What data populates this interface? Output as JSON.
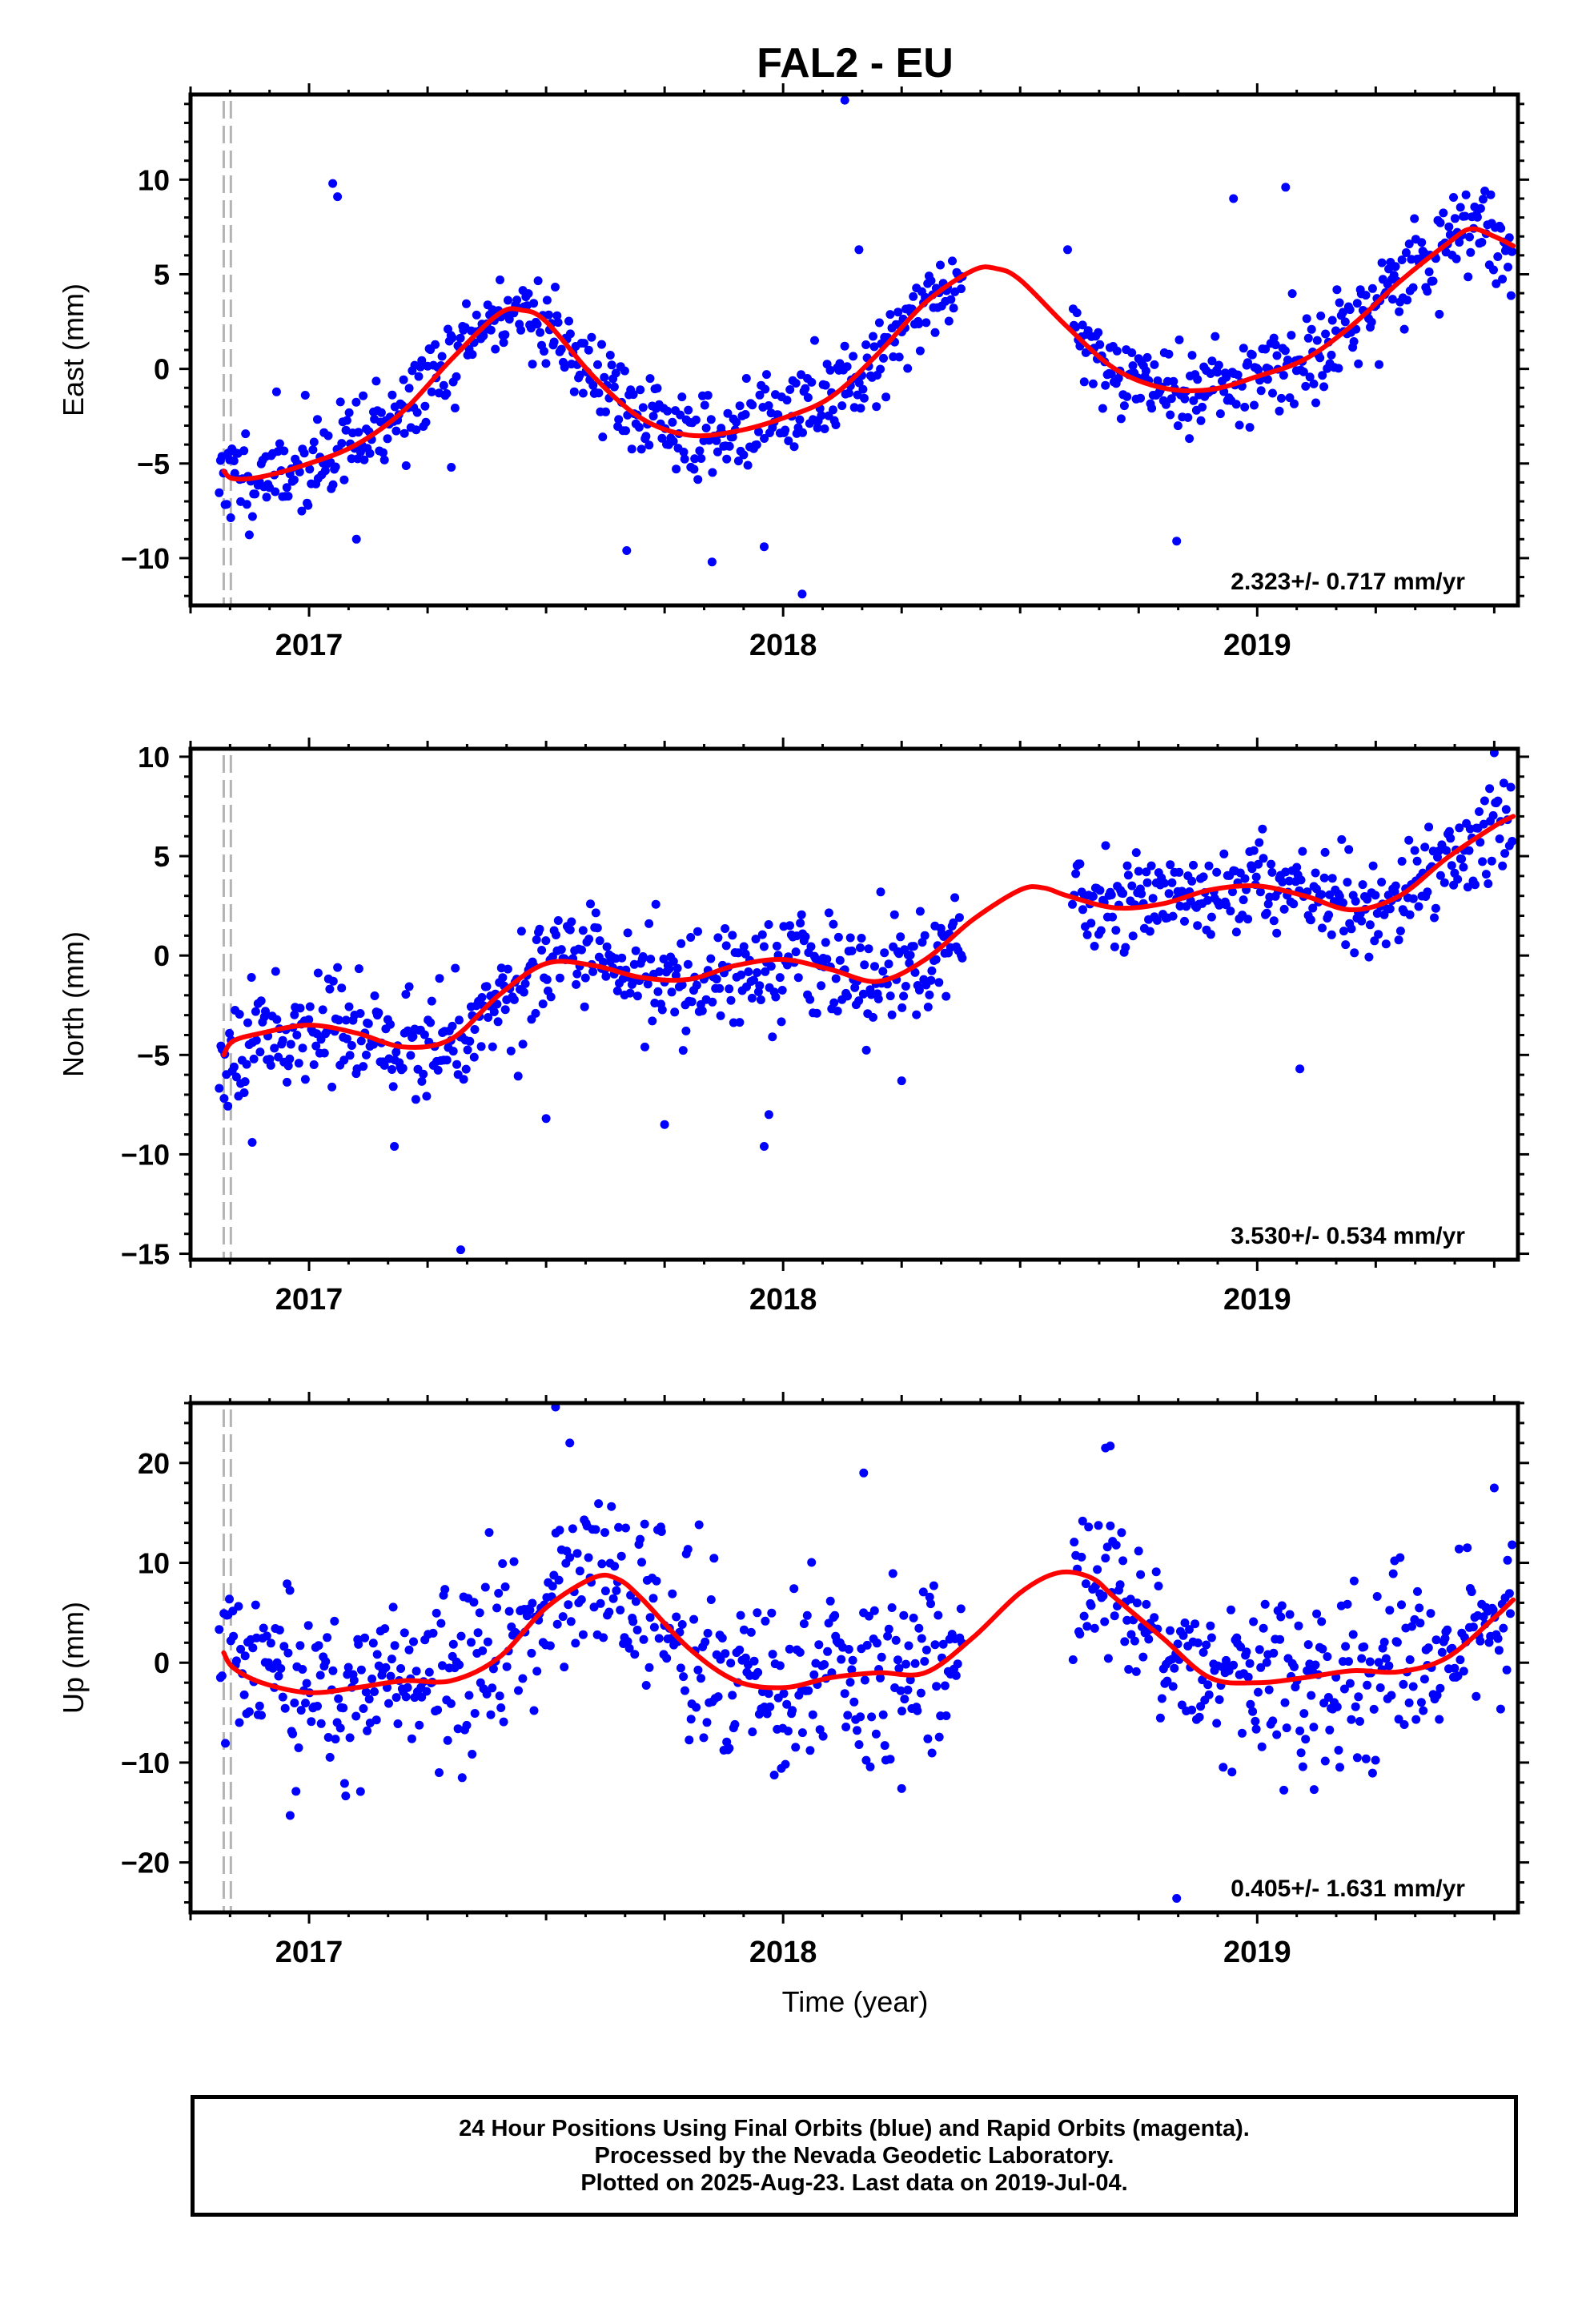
{
  "title": "FAL2 - EU",
  "xlabel": "Time (year)",
  "footer": {
    "lines": [
      "24 Hour Positions Using Final Orbits (blue) and Rapid Orbits (magenta).",
      "Processed by the Nevada Geodetic Laboratory.",
      "Plotted on 2025-Aug-23. Last data on 2019-Jul-04."
    ]
  },
  "colors": {
    "points": "#0000ff",
    "model": "#ff0000",
    "event_lines": "#b4b4b4",
    "frame": "#000000"
  },
  "chart_data": [
    {
      "type": "scatter",
      "id": "east",
      "ylabel": "East (mm)",
      "rate": "2.323+/- 0.717 mm/yr",
      "xlim": [
        2016.75,
        2019.55
      ],
      "ylim": [
        -12.5,
        14.5
      ],
      "yticks": [
        -10,
        -5,
        0,
        5,
        10
      ],
      "xticks": [
        2017,
        2018,
        2019
      ],
      "event_lines": [
        2016.82,
        2016.835
      ],
      "model": [
        [
          2016.82,
          -5.4
        ],
        [
          2016.84,
          -5.8
        ],
        [
          2016.9,
          -5.7
        ],
        [
          2017.0,
          -5.0
        ],
        [
          2017.1,
          -4.0
        ],
        [
          2017.2,
          -2.2
        ],
        [
          2017.3,
          0.5
        ],
        [
          2017.4,
          2.9
        ],
        [
          2017.45,
          3.1
        ],
        [
          2017.5,
          2.5
        ],
        [
          2017.6,
          -0.4
        ],
        [
          2017.7,
          -2.6
        ],
        [
          2017.8,
          -3.5
        ],
        [
          2017.9,
          -3.3
        ],
        [
          2018.0,
          -2.6
        ],
        [
          2018.1,
          -1.5
        ],
        [
          2018.2,
          0.8
        ],
        [
          2018.3,
          3.5
        ],
        [
          2018.4,
          5.2
        ],
        [
          2018.45,
          5.3
        ],
        [
          2018.5,
          4.7
        ],
        [
          2018.6,
          2.2
        ],
        [
          2018.7,
          0.0
        ],
        [
          2018.8,
          -1.0
        ],
        [
          2018.9,
          -1.1
        ],
        [
          2019.0,
          -0.4
        ],
        [
          2019.1,
          0.5
        ],
        [
          2019.2,
          2.3
        ],
        [
          2019.3,
          4.6
        ],
        [
          2019.4,
          6.6
        ],
        [
          2019.45,
          7.4
        ],
        [
          2019.5,
          7.0
        ],
        [
          2019.54,
          6.5
        ]
      ],
      "points": {
        "segments": [
          [
            2016.81,
            2018.38
          ],
          [
            2018.61,
            2019.54
          ]
        ],
        "n_per_year": 330,
        "noise_sd": 1.2,
        "seed": 11,
        "outliers": [
          [
            2017.05,
            9.8
          ],
          [
            2017.06,
            9.1
          ],
          [
            2017.67,
            -9.6
          ],
          [
            2017.85,
            -10.2
          ],
          [
            2017.96,
            -9.4
          ],
          [
            2018.04,
            -11.9
          ],
          [
            2018.13,
            14.2
          ],
          [
            2018.16,
            6.3
          ],
          [
            2018.83,
            -9.1
          ],
          [
            2018.95,
            9.0
          ],
          [
            2019.06,
            9.6
          ],
          [
            2017.3,
            -5.2
          ],
          [
            2017.1,
            -9.0
          ],
          [
            2018.6,
            6.3
          ]
        ]
      }
    },
    {
      "type": "scatter",
      "id": "north",
      "ylabel": "North (mm)",
      "rate": "3.530+/- 0.534 mm/yr",
      "xlim": [
        2016.75,
        2019.55
      ],
      "ylim": [
        -15.3,
        10.4
      ],
      "yticks": [
        -15,
        -10,
        -5,
        0,
        5,
        10
      ],
      "xticks": [
        2017,
        2018,
        2019
      ],
      "event_lines": [
        2016.82,
        2016.835
      ],
      "model": [
        [
          2016.82,
          -5.0
        ],
        [
          2016.84,
          -4.3
        ],
        [
          2016.9,
          -3.9
        ],
        [
          2017.0,
          -3.5
        ],
        [
          2017.1,
          -3.9
        ],
        [
          2017.2,
          -4.6
        ],
        [
          2017.3,
          -4.2
        ],
        [
          2017.4,
          -2.0
        ],
        [
          2017.5,
          -0.4
        ],
        [
          2017.6,
          -0.5
        ],
        [
          2017.7,
          -1.1
        ],
        [
          2017.8,
          -1.2
        ],
        [
          2017.9,
          -0.5
        ],
        [
          2018.0,
          -0.2
        ],
        [
          2018.1,
          -0.7
        ],
        [
          2018.2,
          -1.3
        ],
        [
          2018.3,
          -0.2
        ],
        [
          2018.4,
          1.8
        ],
        [
          2018.5,
          3.3
        ],
        [
          2018.55,
          3.4
        ],
        [
          2018.6,
          3.0
        ],
        [
          2018.7,
          2.4
        ],
        [
          2018.8,
          2.6
        ],
        [
          2018.9,
          3.3
        ],
        [
          2019.0,
          3.5
        ],
        [
          2019.1,
          3.0
        ],
        [
          2019.2,
          2.3
        ],
        [
          2019.3,
          3.0
        ],
        [
          2019.4,
          4.9
        ],
        [
          2019.5,
          6.5
        ],
        [
          2019.54,
          7.0
        ]
      ],
      "points": {
        "segments": [
          [
            2016.81,
            2018.38
          ],
          [
            2018.61,
            2019.54
          ]
        ],
        "n_per_year": 330,
        "noise_sd": 1.3,
        "seed": 23,
        "outliers": [
          [
            2017.32,
            -14.8
          ],
          [
            2016.88,
            -9.4
          ],
          [
            2017.5,
            -8.2
          ],
          [
            2017.75,
            -8.5
          ],
          [
            2017.96,
            -9.6
          ],
          [
            2017.97,
            -8.0
          ],
          [
            2019.09,
            -5.7
          ],
          [
            2017.18,
            -9.6
          ],
          [
            2018.25,
            -6.3
          ],
          [
            2019.5,
            10.2
          ]
        ]
      }
    },
    {
      "type": "scatter",
      "id": "up",
      "ylabel": "Up (mm)",
      "rate": "0.405+/- 1.631 mm/yr",
      "xlim": [
        2016.75,
        2019.55
      ],
      "ylim": [
        -25.0,
        26.0
      ],
      "yticks": [
        -20,
        -10,
        0,
        10,
        20
      ],
      "xticks": [
        2017,
        2018,
        2019
      ],
      "event_lines": [
        2016.82,
        2016.835
      ],
      "model": [
        [
          2016.82,
          1.0
        ],
        [
          2016.84,
          -0.5
        ],
        [
          2016.9,
          -2.0
        ],
        [
          2017.0,
          -3.0
        ],
        [
          2017.1,
          -2.5
        ],
        [
          2017.2,
          -1.8
        ],
        [
          2017.3,
          -1.8
        ],
        [
          2017.4,
          0.5
        ],
        [
          2017.5,
          5.5
        ],
        [
          2017.6,
          8.5
        ],
        [
          2017.65,
          8.4
        ],
        [
          2017.7,
          6.5
        ],
        [
          2017.8,
          1.5
        ],
        [
          2017.9,
          -1.8
        ],
        [
          2018.0,
          -2.5
        ],
        [
          2018.1,
          -1.5
        ],
        [
          2018.2,
          -1.0
        ],
        [
          2018.3,
          -1.0
        ],
        [
          2018.4,
          2.5
        ],
        [
          2018.5,
          7.0
        ],
        [
          2018.58,
          9.0
        ],
        [
          2018.65,
          8.5
        ],
        [
          2018.7,
          6.5
        ],
        [
          2018.8,
          2.5
        ],
        [
          2018.9,
          -1.5
        ],
        [
          2019.0,
          -2.0
        ],
        [
          2019.1,
          -1.5
        ],
        [
          2019.2,
          -0.8
        ],
        [
          2019.3,
          -0.9
        ],
        [
          2019.4,
          0.5
        ],
        [
          2019.5,
          4.5
        ],
        [
          2019.54,
          6.3
        ]
      ],
      "points": {
        "segments": [
          [
            2016.81,
            2018.38
          ],
          [
            2018.61,
            2019.54
          ]
        ],
        "n_per_year": 330,
        "noise_sd": 4.3,
        "seed": 37,
        "outliers": [
          [
            2017.52,
            25.6
          ],
          [
            2017.55,
            22.0
          ],
          [
            2018.17,
            19.0
          ],
          [
            2018.68,
            21.5
          ],
          [
            2018.69,
            21.7
          ],
          [
            2018.83,
            -23.6
          ],
          [
            2019.5,
            17.5
          ],
          [
            2016.96,
            -15.3
          ],
          [
            2018.25,
            -12.6
          ],
          [
            2019.12,
            -12.7
          ]
        ]
      }
    }
  ]
}
